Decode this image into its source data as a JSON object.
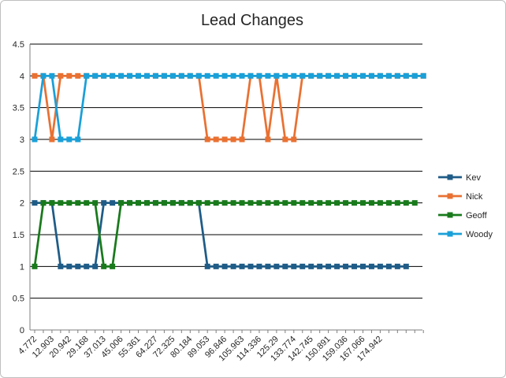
{
  "chart_data": {
    "type": "line",
    "title": "Lead Changes",
    "xlabel": "",
    "ylabel": "",
    "ylim": [
      0,
      4.5
    ],
    "yticks": [
      "0",
      "0.5",
      "1",
      "1.5",
      "2",
      "2.5",
      "3",
      "3.5",
      "4",
      "4.5"
    ],
    "grid": true,
    "legend_position": "right",
    "x_tick_labels": [
      "4.772",
      "12.903",
      "20.942",
      "29.168",
      "37.013",
      "45.006",
      "55.361",
      "64.227",
      "72.325",
      "80.184",
      "89.053",
      "96.846",
      "105.963",
      "114.336",
      "125.29",
      "133.774",
      "142.745",
      "150.891",
      "159.036",
      "167.066",
      "174.942"
    ],
    "series": [
      {
        "name": "Kev",
        "color": "#1f5c87",
        "values": [
          2,
          2,
          2,
          1,
          1,
          1,
          1,
          1,
          2,
          2,
          2,
          2,
          2,
          2,
          2,
          2,
          2,
          2,
          2,
          2,
          1,
          1,
          1,
          1,
          1,
          1,
          1,
          1,
          1,
          1,
          1,
          1,
          1,
          1,
          1,
          1,
          1,
          1,
          1,
          1,
          1,
          1,
          1,
          1
        ]
      },
      {
        "name": "Nick",
        "color": "#e97132",
        "values": [
          4,
          4,
          3,
          4,
          4,
          4,
          4,
          4,
          4,
          4,
          4,
          4,
          4,
          4,
          4,
          4,
          4,
          4,
          4,
          4,
          3,
          3,
          3,
          3,
          3,
          4,
          4,
          3,
          4,
          3,
          3,
          4,
          4,
          4,
          4,
          4,
          4,
          4,
          4,
          4,
          4,
          4,
          4,
          4,
          4,
          4
        ]
      },
      {
        "name": "Geoff",
        "color": "#197a1c",
        "values": [
          1,
          2,
          2,
          2,
          2,
          2,
          2,
          2,
          1,
          1,
          2,
          2,
          2,
          2,
          2,
          2,
          2,
          2,
          2,
          2,
          2,
          2,
          2,
          2,
          2,
          2,
          2,
          2,
          2,
          2,
          2,
          2,
          2,
          2,
          2,
          2,
          2,
          2,
          2,
          2,
          2,
          2,
          2,
          2,
          2
        ]
      },
      {
        "name": "Woody",
        "color": "#1aa0d8",
        "values": [
          3,
          4,
          4,
          3,
          3,
          3,
          4,
          4,
          4,
          4,
          4,
          4,
          4,
          4,
          4,
          4,
          4,
          4,
          4,
          4,
          4,
          4,
          4,
          4,
          4,
          4,
          4,
          4,
          4,
          4,
          4,
          4,
          4,
          4,
          4,
          4,
          4,
          4,
          4,
          4,
          4,
          4,
          4,
          4,
          4,
          4
        ]
      }
    ]
  }
}
